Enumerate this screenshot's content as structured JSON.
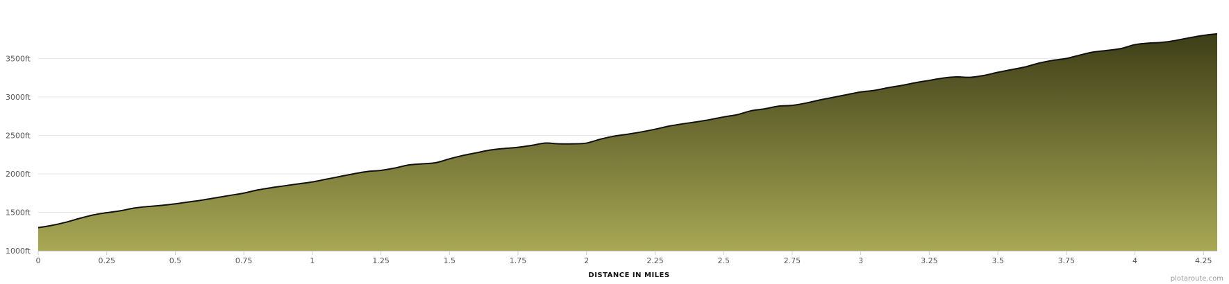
{
  "chart_data": {
    "type": "area",
    "title": "",
    "xlabel": "DISTANCE IN MILES",
    "ylabel": "",
    "xlim": [
      0,
      4.3
    ],
    "ylim": [
      1000,
      3900
    ],
    "x_ticks": [
      0,
      0.25,
      0.5,
      0.75,
      1,
      1.25,
      1.5,
      1.75,
      2,
      2.25,
      2.5,
      2.75,
      3,
      3.25,
      3.5,
      3.75,
      4,
      4.25
    ],
    "x_tick_labels": [
      "0",
      "0.25",
      "0.5",
      "0.75",
      "1",
      "1.25",
      "1.5",
      "1.75",
      "2",
      "2.25",
      "2.5",
      "2.75",
      "3",
      "3.25",
      "3.5",
      "3.75",
      "4",
      "4.25"
    ],
    "y_ticks": [
      1000,
      1500,
      2000,
      2500,
      3000,
      3500
    ],
    "y_tick_labels": [
      "1000ft",
      "1500ft",
      "2000ft",
      "2500ft",
      "3000ft",
      "3500ft"
    ],
    "grid": true,
    "series": [
      {
        "x": [
          0,
          0.05,
          0.1,
          0.15,
          0.2,
          0.25,
          0.3,
          0.35,
          0.4,
          0.45,
          0.5,
          0.55,
          0.6,
          0.65,
          0.7,
          0.75,
          0.8,
          0.85,
          0.9,
          0.95,
          1,
          1.05,
          1.1,
          1.15,
          1.2,
          1.25,
          1.3,
          1.35,
          1.4,
          1.45,
          1.5,
          1.55,
          1.6,
          1.65,
          1.7,
          1.75,
          1.8,
          1.85,
          1.9,
          1.95,
          2,
          2.05,
          2.1,
          2.15,
          2.2,
          2.25,
          2.3,
          2.35,
          2.4,
          2.45,
          2.5,
          2.55,
          2.6,
          2.65,
          2.7,
          2.75,
          2.8,
          2.85,
          2.9,
          2.95,
          3,
          3.05,
          3.1,
          3.15,
          3.2,
          3.25,
          3.3,
          3.35,
          3.4,
          3.45,
          3.5,
          3.55,
          3.6,
          3.65,
          3.7,
          3.75,
          3.8,
          3.85,
          3.9,
          3.95,
          4,
          4.05,
          4.1,
          4.15,
          4.2,
          4.25,
          4.3
        ],
        "values": [
          1300,
          1330,
          1370,
          1420,
          1465,
          1495,
          1520,
          1555,
          1575,
          1590,
          1610,
          1635,
          1660,
          1690,
          1720,
          1750,
          1790,
          1820,
          1845,
          1870,
          1895,
          1930,
          1965,
          2000,
          2030,
          2045,
          2075,
          2115,
          2130,
          2145,
          2195,
          2240,
          2275,
          2310,
          2330,
          2345,
          2370,
          2400,
          2390,
          2390,
          2400,
          2450,
          2490,
          2515,
          2545,
          2580,
          2620,
          2650,
          2675,
          2705,
          2740,
          2770,
          2820,
          2845,
          2880,
          2890,
          2920,
          2960,
          2995,
          3030,
          3065,
          3085,
          3120,
          3150,
          3185,
          3215,
          3245,
          3260,
          3255,
          3280,
          3320,
          3355,
          3390,
          3440,
          3475,
          3500,
          3545,
          3585,
          3605,
          3630,
          3680,
          3700,
          3710,
          3735,
          3770,
          3800,
          3820
        ]
      }
    ],
    "colors": {
      "fill_top": "#3e3e18",
      "fill_bottom": "#a8a855",
      "line": "#111111",
      "grid": "#e6e6e6",
      "axis": "#cccccc"
    }
  },
  "credit": "plotaroute.com"
}
